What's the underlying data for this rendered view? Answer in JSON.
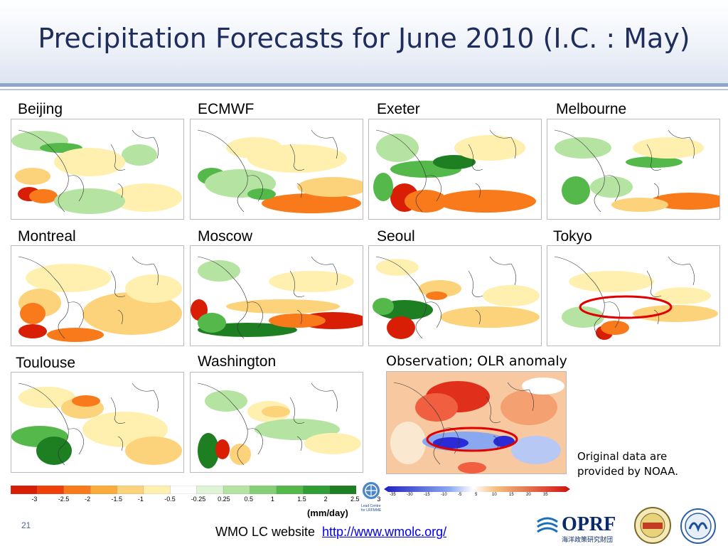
{
  "title": "Precipitation Forecasts for June 2010 (I.C. : May)",
  "models": [
    "Beijing",
    "ECMWF",
    "Exeter",
    "Melbourne",
    "Montreal",
    "Moscow",
    "Seoul",
    "Tokyo",
    "Toulouse",
    "Washington"
  ],
  "observation_title": "Observation; OLR anomaly",
  "note_line1": "Original data are",
  "note_line2": "provided by NOAA.",
  "colorbar_ticks": [
    "-3",
    "-2.5",
    "-2",
    "-1.5",
    "-1",
    "-0.5",
    "-0.25",
    "0.25",
    "0.5",
    "1",
    "1.5",
    "2",
    "2.5",
    "3"
  ],
  "unit": "(mm/day)",
  "wmo_text": "Lead Centre for LRFMME",
  "obs_scale_ticks": [
    "-35",
    "-30",
    "-15",
    "-10",
    "-5",
    "5",
    "10",
    "15",
    "20",
    "35"
  ],
  "page_number": "21",
  "footer_label": "WMO LC website",
  "footer_link": "http://www.wmolc.org/",
  "oprf_text": "OPRF",
  "oprf_sub": "海洋政策研究財団",
  "colors": {
    "title": "#1f2d5c",
    "wet": "#2ca02c",
    "dry": "#e8501e",
    "ellipse": "#e00000"
  }
}
